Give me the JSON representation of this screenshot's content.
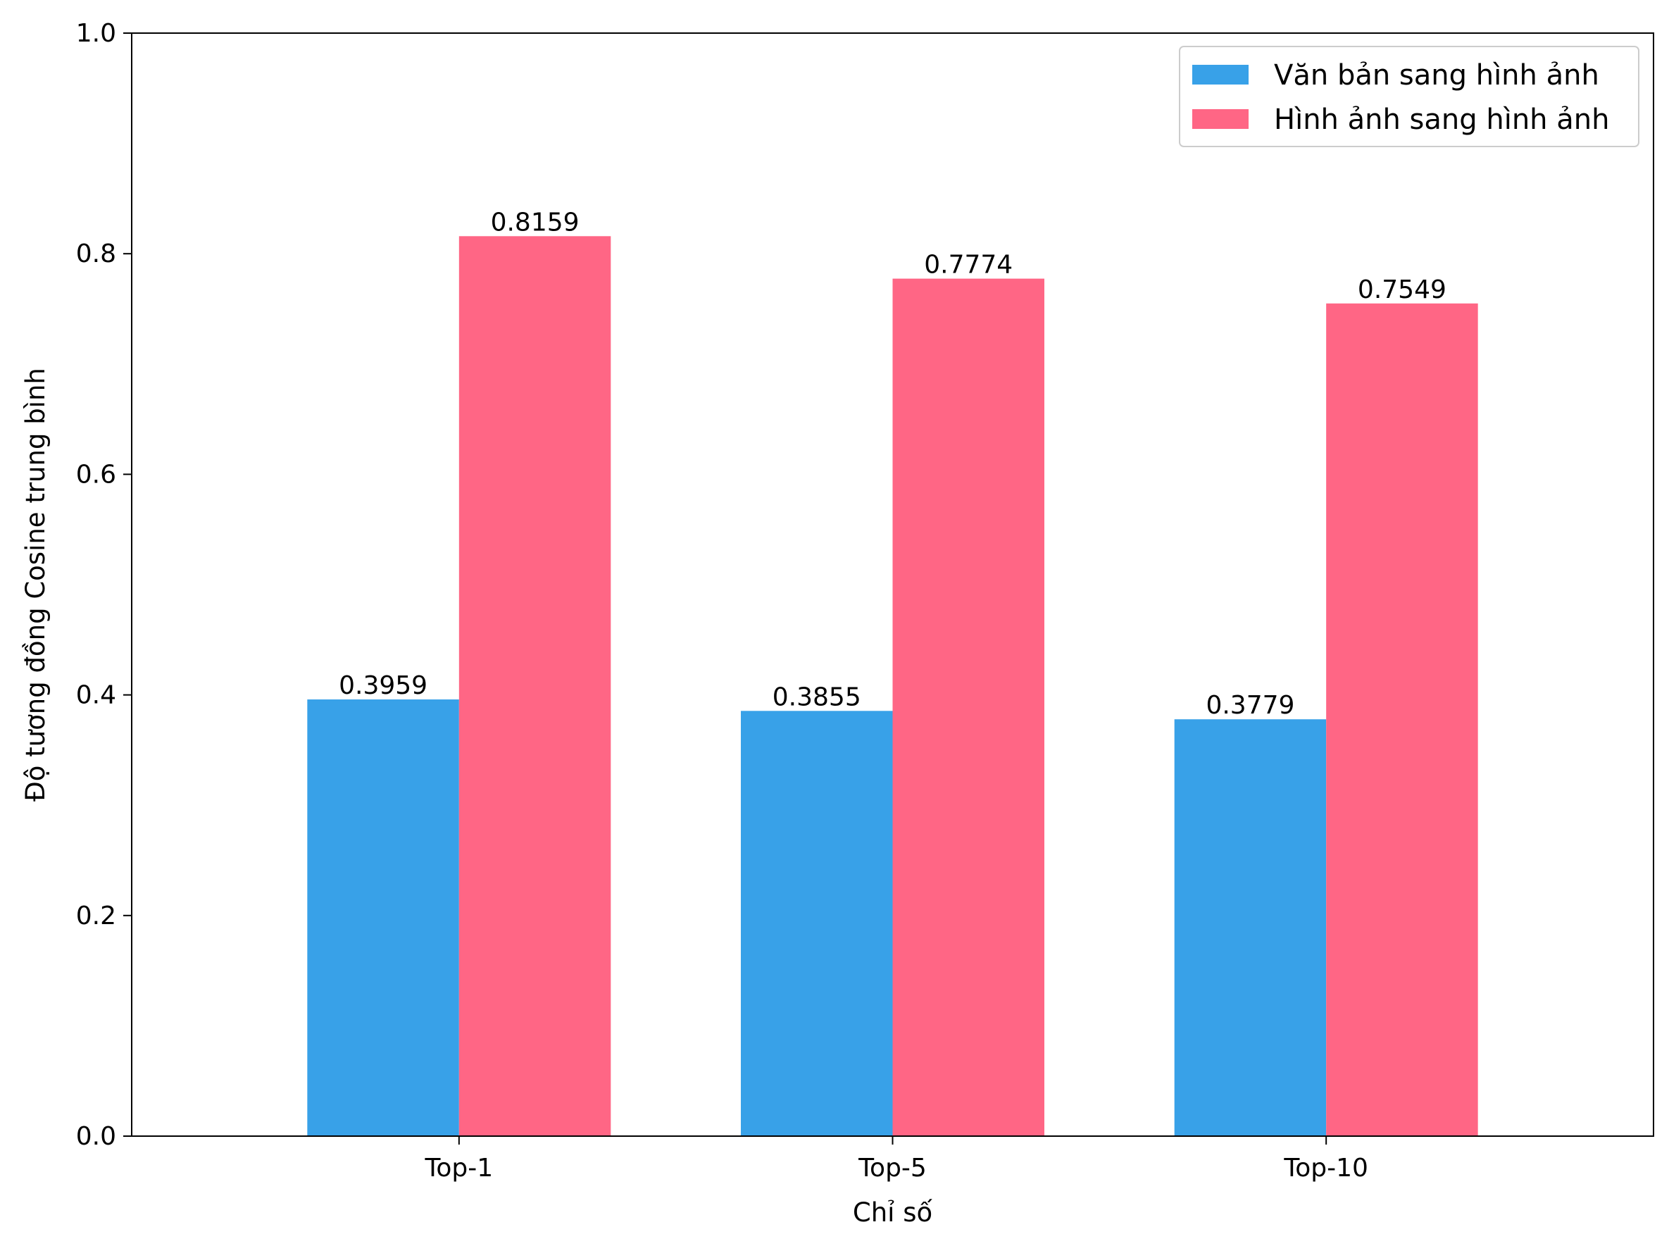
{
  "chart_data": {
    "type": "bar",
    "categories": [
      "Top-1",
      "Top-5",
      "Top-10"
    ],
    "series": [
      {
        "name": "Văn bản sang hình ảnh",
        "color": "#38a1e8",
        "values": [
          0.3959,
          0.3855,
          0.3779
        ]
      },
      {
        "name": "Hình ảnh sang hình ảnh",
        "color": "#ff6685",
        "values": [
          0.8159,
          0.7774,
          0.7549
        ]
      }
    ],
    "value_labels": [
      [
        "0.3959",
        "0.3855",
        "0.3779"
      ],
      [
        "0.8159",
        "0.7774",
        "0.7549"
      ]
    ],
    "xlabel": "Chỉ số",
    "ylabel": "Độ tương đồng Cosine trung bình",
    "ylim": [
      0,
      1.0
    ],
    "yticks": [
      0.0,
      0.2,
      0.4,
      0.6,
      0.8,
      1.0
    ],
    "ytick_labels": [
      "0.0",
      "0.2",
      "0.4",
      "0.6",
      "0.8",
      "1.0"
    ],
    "grid": false,
    "legend_position": "top-right"
  }
}
